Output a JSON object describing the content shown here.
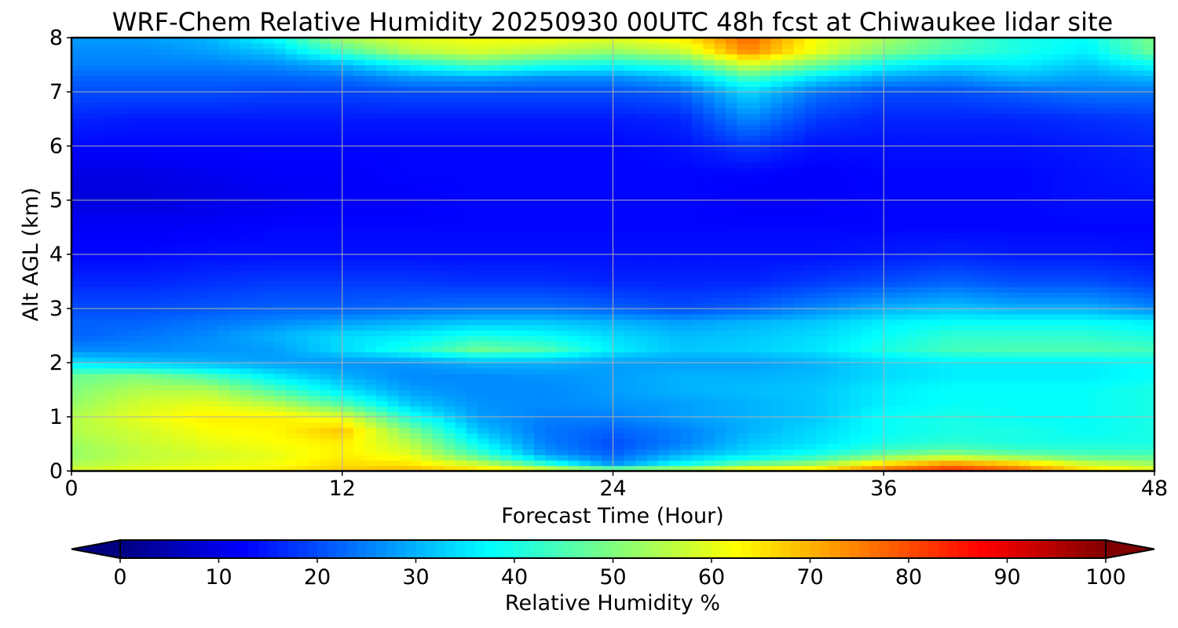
{
  "chart_data": {
    "type": "heatmap",
    "title": "WRF-Chem Relative Humidity 20250930 00UTC 48h fcst at Chiwaukee lidar site",
    "xlabel": "Forecast Time (Hour)",
    "ylabel": "Alt AGL (km)",
    "xlim": [
      0,
      48
    ],
    "ylim": [
      0,
      8
    ],
    "xticks": [
      "0",
      "12",
      "24",
      "36",
      "48"
    ],
    "yticks": [
      "0",
      "1",
      "2",
      "3",
      "4",
      "5",
      "6",
      "7",
      "8"
    ],
    "grid": true,
    "colorbar": {
      "label": "Relative Humidity %",
      "range": [
        0,
        100
      ],
      "ticks": [
        "0",
        "10",
        "20",
        "30",
        "40",
        "50",
        "60",
        "70",
        "80",
        "90",
        "100"
      ],
      "extend": "both",
      "colormap": "jet"
    },
    "x_hours": [
      0,
      3,
      6,
      9,
      12,
      15,
      18,
      21,
      24,
      27,
      30,
      33,
      36,
      39,
      42,
      45,
      48
    ],
    "z_km": [
      0,
      0.1,
      0.3,
      0.5,
      0.75,
      1.0,
      1.25,
      1.5,
      1.75,
      2.0,
      2.25,
      2.5,
      2.75,
      3.0,
      3.5,
      4.0,
      4.5,
      5.0,
      5.5,
      6.0,
      6.5,
      7.0,
      7.25,
      7.5,
      7.75,
      8.0
    ],
    "rh_percent": [
      [
        60,
        62,
        63,
        65,
        68,
        70,
        68,
        66,
        62,
        63,
        70,
        70,
        78,
        83,
        78,
        68,
        62
      ],
      [
        55,
        58,
        60,
        62,
        66,
        66,
        60,
        45,
        28,
        40,
        50,
        55,
        70,
        78,
        72,
        60,
        55
      ],
      [
        52,
        56,
        58,
        60,
        64,
        60,
        45,
        28,
        22,
        30,
        35,
        40,
        48,
        52,
        48,
        45,
        45
      ],
      [
        53,
        57,
        60,
        62,
        64,
        56,
        38,
        25,
        20,
        25,
        32,
        35,
        40,
        42,
        40,
        40,
        40
      ],
      [
        55,
        58,
        62,
        63,
        68,
        50,
        32,
        24,
        22,
        25,
        30,
        34,
        38,
        40,
        40,
        38,
        40
      ],
      [
        55,
        60,
        64,
        64,
        60,
        40,
        28,
        25,
        25,
        28,
        30,
        32,
        38,
        40,
        38,
        38,
        40
      ],
      [
        52,
        58,
        60,
        55,
        45,
        32,
        27,
        26,
        27,
        28,
        30,
        32,
        36,
        38,
        38,
        38,
        40
      ],
      [
        50,
        55,
        55,
        45,
        35,
        28,
        26,
        26,
        28,
        30,
        31,
        32,
        36,
        38,
        38,
        38,
        40
      ],
      [
        48,
        50,
        45,
        36,
        30,
        26,
        26,
        27,
        28,
        30,
        30,
        31,
        34,
        36,
        36,
        36,
        38
      ],
      [
        35,
        32,
        30,
        28,
        27,
        27,
        30,
        30,
        28,
        28,
        28,
        30,
        34,
        36,
        36,
        36,
        38
      ],
      [
        26,
        26,
        27,
        28,
        34,
        40,
        48,
        45,
        36,
        32,
        33,
        35,
        40,
        44,
        45,
        45,
        44
      ],
      [
        22,
        24,
        26,
        30,
        34,
        36,
        40,
        38,
        34,
        31,
        32,
        34,
        38,
        42,
        42,
        42,
        40
      ],
      [
        22,
        22,
        24,
        26,
        28,
        30,
        32,
        32,
        30,
        28,
        30,
        32,
        36,
        38,
        38,
        38,
        36
      ],
      [
        20,
        20,
        21,
        22,
        22,
        23,
        24,
        24,
        22,
        20,
        22,
        26,
        30,
        32,
        30,
        30,
        26
      ],
      [
        16,
        16,
        17,
        18,
        18,
        18,
        17,
        17,
        16,
        16,
        16,
        18,
        20,
        22,
        20,
        20,
        18
      ],
      [
        13,
        13,
        14,
        14,
        14,
        14,
        14,
        14,
        14,
        14,
        14,
        14,
        15,
        16,
        15,
        15,
        14
      ],
      [
        12,
        12,
        12,
        13,
        13,
        13,
        13,
        13,
        13,
        13,
        13,
        13,
        13,
        13,
        13,
        13,
        13
      ],
      [
        9,
        9,
        10,
        11,
        12,
        12,
        13,
        13,
        13,
        13,
        12,
        12,
        13,
        13,
        13,
        14,
        14
      ],
      [
        10,
        10,
        11,
        12,
        12,
        13,
        13,
        13,
        13,
        13,
        13,
        12,
        13,
        13,
        13,
        14,
        15
      ],
      [
        13,
        13,
        13,
        13,
        13,
        13,
        13,
        13,
        13,
        14,
        18,
        14,
        14,
        14,
        14,
        15,
        16
      ],
      [
        16,
        15,
        15,
        15,
        15,
        15,
        15,
        15,
        15,
        16,
        26,
        18,
        16,
        16,
        16,
        17,
        18
      ],
      [
        20,
        20,
        20,
        19,
        19,
        20,
        20,
        20,
        20,
        22,
        34,
        24,
        20,
        20,
        22,
        24,
        24
      ],
      [
        22,
        22,
        22,
        22,
        23,
        27,
        28,
        26,
        26,
        30,
        44,
        34,
        28,
        26,
        30,
        28,
        30
      ],
      [
        25,
        25,
        25,
        26,
        30,
        38,
        45,
        40,
        38,
        42,
        58,
        48,
        38,
        34,
        36,
        32,
        38
      ],
      [
        26,
        26,
        28,
        32,
        44,
        55,
        58,
        55,
        52,
        56,
        74,
        60,
        50,
        44,
        40,
        36,
        48
      ],
      [
        28,
        28,
        30,
        38,
        54,
        60,
        62,
        62,
        60,
        64,
        78,
        62,
        54,
        46,
        40,
        38,
        50
      ]
    ]
  }
}
